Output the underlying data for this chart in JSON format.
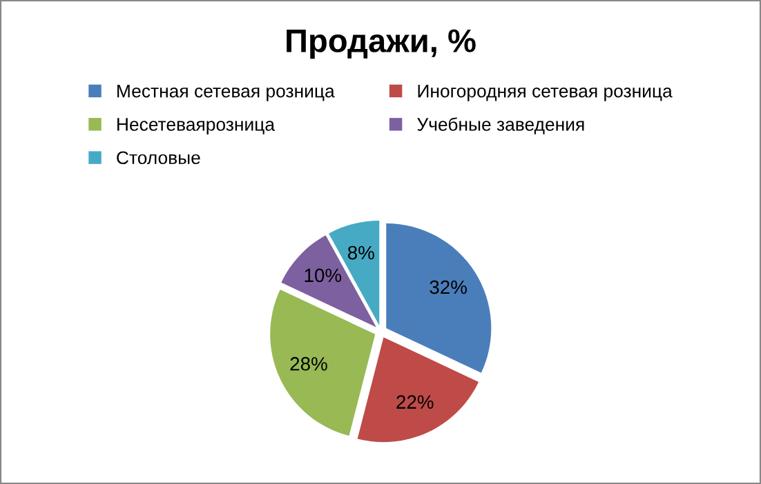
{
  "chart_data": {
    "type": "pie",
    "title": "Продажи, %",
    "categories": [
      "Местная сетевая розница",
      "Иногородняя сетевая розница",
      "Несетеваярозница",
      "Учебные заведения",
      "Столовые"
    ],
    "values": [
      32,
      22,
      28,
      10,
      8
    ],
    "value_labels": [
      "32%",
      "22%",
      "28%",
      "10%",
      "8%"
    ],
    "colors": [
      "#4a7ebb",
      "#be4b48",
      "#98b954",
      "#7d60a0",
      "#46aac5"
    ],
    "legend": "top"
  }
}
